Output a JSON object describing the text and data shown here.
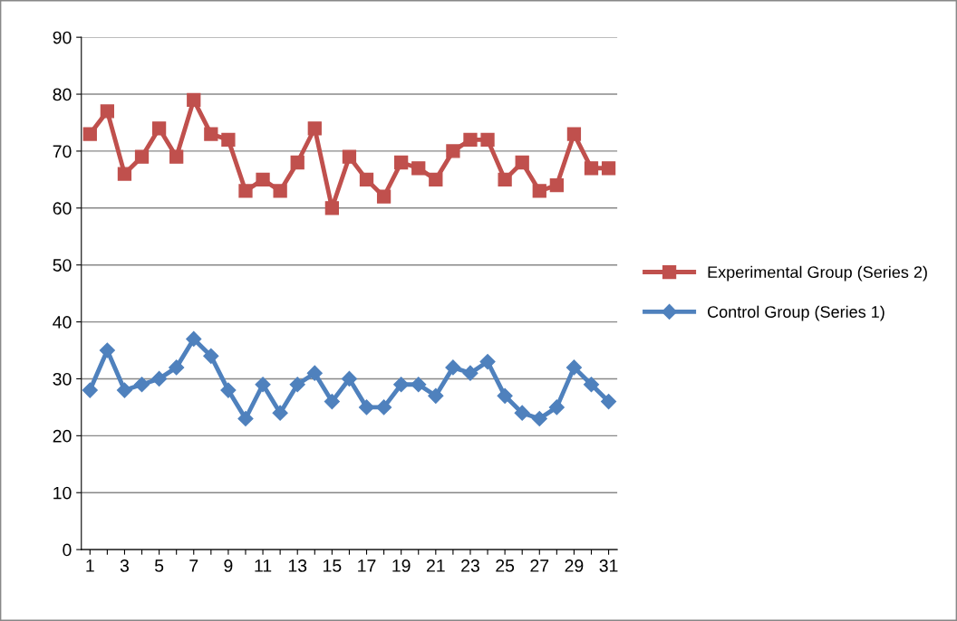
{
  "chart_data": {
    "type": "line",
    "categories": [
      "1",
      null,
      "3",
      null,
      "5",
      null,
      "7",
      null,
      "9",
      null,
      "11",
      null,
      "13",
      null,
      "15",
      null,
      "17",
      null,
      "19",
      null,
      "21",
      null,
      "23",
      null,
      "25",
      null,
      "27",
      null,
      "29",
      null,
      "31"
    ],
    "series": [
      {
        "name": "Experimental Group (Series 2)",
        "color": "#c0504d",
        "marker": "square",
        "values": [
          73,
          77,
          66,
          69,
          74,
          69,
          79,
          73,
          72,
          63,
          65,
          63,
          68,
          74,
          60,
          69,
          65,
          62,
          68,
          67,
          65,
          70,
          72,
          72,
          65,
          68,
          63,
          64,
          73,
          67,
          67
        ]
      },
      {
        "name": "Control Group (Series 1)",
        "color": "#4f81bd",
        "marker": "diamond",
        "values": [
          28,
          35,
          28,
          29,
          30,
          32,
          37,
          34,
          28,
          23,
          29,
          24,
          29,
          31,
          26,
          30,
          25,
          25,
          29,
          29,
          27,
          32,
          31,
          33,
          27,
          24,
          23,
          25,
          32,
          29,
          26
        ]
      }
    ],
    "ylim": [
      0,
      90
    ],
    "yticks": [
      0,
      10,
      20,
      30,
      40,
      50,
      60,
      70,
      80,
      90
    ],
    "grid": "y",
    "legend": "right",
    "line_style": "solid"
  }
}
